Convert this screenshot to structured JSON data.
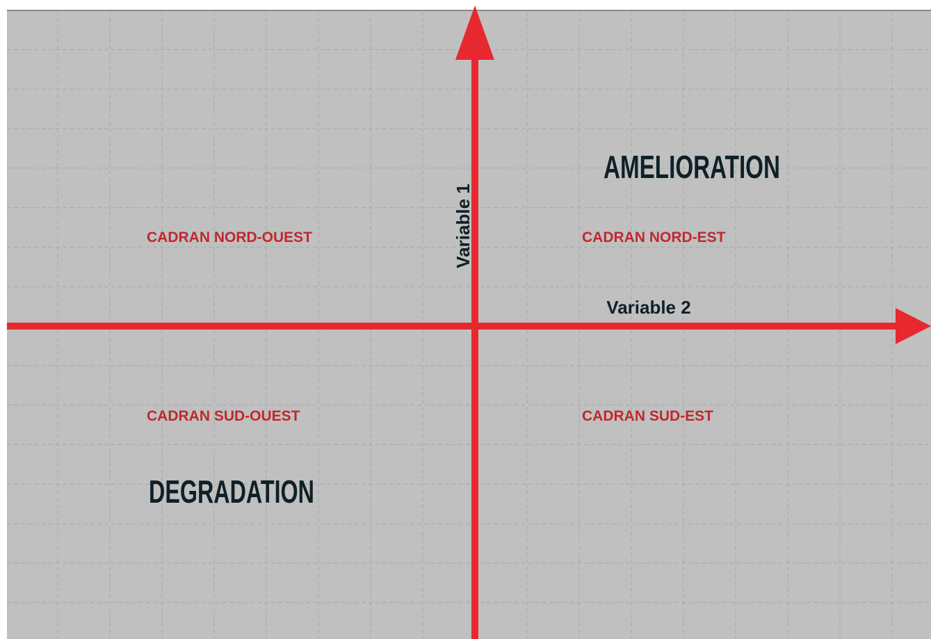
{
  "axes": {
    "vertical": "Variable 1",
    "horizontal": "Variable 2"
  },
  "quadrants": {
    "north_west": "CADRAN NORD-OUEST",
    "north_east": "CADRAN NORD-EST",
    "south_west": "CADRAN SUD-OUEST",
    "south_east": "CADRAN SUD-EST"
  },
  "zones": {
    "top": "AMELIORATION",
    "bottom": "DEGRADATION"
  }
}
